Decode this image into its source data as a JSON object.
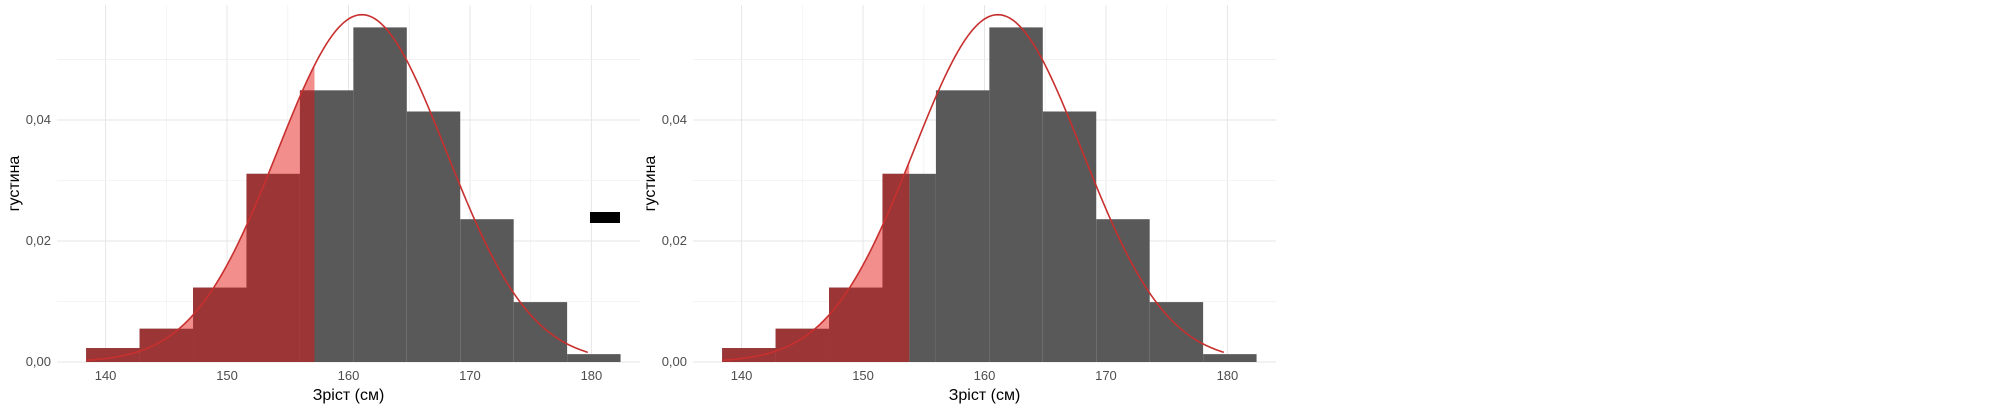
{
  "chart_data": [
    {
      "type": "bar",
      "xlabel": "Зріст (см)",
      "ylabel": "густина",
      "xlim": [
        136,
        184
      ],
      "ylim": [
        0,
        0.059
      ],
      "x_ticks": [
        140,
        150,
        160,
        170,
        180
      ],
      "y_ticks": [
        0.0,
        0.02,
        0.04
      ],
      "y_tick_labels": [
        "0,00",
        "0,02",
        "0,04"
      ],
      "grid": true,
      "histogram": {
        "bin_edges": [
          138.4,
          142.8,
          147.2,
          151.6,
          156.0,
          160.4,
          164.8,
          169.2,
          173.6,
          178.0,
          182.4
        ],
        "densities": [
          0.0023,
          0.0055,
          0.0123,
          0.0311,
          0.0449,
          0.0553,
          0.0414,
          0.0236,
          0.0099,
          0.0013
        ],
        "color": "#595959"
      },
      "density_curve": {
        "mean": 161.1,
        "sd": 6.95,
        "x_range": [
          138.4,
          179.7
        ],
        "color": "#c8302f"
      },
      "shaded_cutoff": 157.2,
      "shade_fill_color": "#f28e8c",
      "shade_bar_color": "#9c3535",
      "legend_key_color": "#000000"
    },
    {
      "type": "bar",
      "xlabel": "Зріст (см)",
      "ylabel": "густина",
      "xlim": [
        136,
        184
      ],
      "ylim": [
        0,
        0.059
      ],
      "x_ticks": [
        140,
        150,
        160,
        170,
        180
      ],
      "y_ticks": [
        0.0,
        0.02,
        0.04
      ],
      "y_tick_labels": [
        "0,00",
        "0,02",
        "0,04"
      ],
      "grid": true,
      "histogram": {
        "bin_edges": [
          138.4,
          142.8,
          147.2,
          151.6,
          156.0,
          160.4,
          164.8,
          169.2,
          173.6,
          178.0,
          182.4
        ],
        "densities": [
          0.0023,
          0.0055,
          0.0123,
          0.0311,
          0.0449,
          0.0553,
          0.0414,
          0.0236,
          0.0099,
          0.0013
        ],
        "color": "#595959"
      },
      "density_curve": {
        "mean": 161.1,
        "sd": 6.95,
        "x_range": [
          138.4,
          179.7
        ],
        "color": "#c8302f"
      },
      "shaded_cutoff": 153.8,
      "shade_fill_color": "#f28e8c",
      "shade_bar_color": "#9c3535"
    }
  ]
}
